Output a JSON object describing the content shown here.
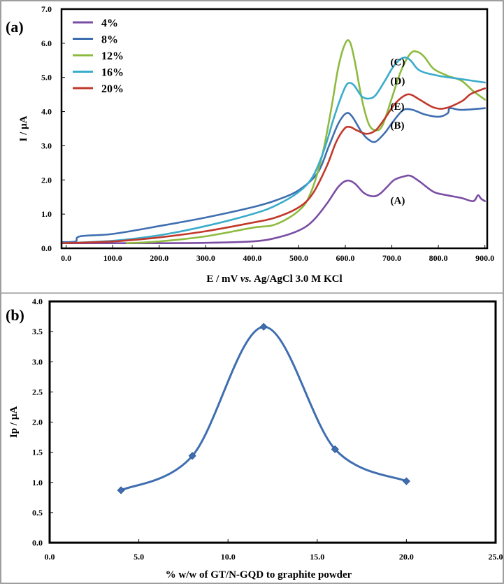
{
  "chart_data": [
    {
      "panel": "(a)",
      "type": "line",
      "xlabel_prefix": "E / mV ",
      "xlabel_italic": "vs.",
      "xlabel_suffix": " Ag/AgCl 3.0 M KCl",
      "ylabel": "I / µA",
      "xlim": [
        0,
        900
      ],
      "ylim": [
        0,
        7
      ],
      "xticks": [
        0,
        100,
        200,
        300,
        400,
        500,
        600,
        700,
        800,
        900
      ],
      "xtick_labels": [
        "0.0",
        "100.0",
        "200.0",
        "300.0",
        "400.0",
        "500.0",
        "600.0",
        "700.0",
        "800.0",
        "900.0"
      ],
      "yticks": [
        0,
        1,
        2,
        3,
        4,
        5,
        6,
        7
      ],
      "ytick_labels": [
        "0.0",
        "1.0",
        "2.0",
        "3.0",
        "4.0",
        "5.0",
        "6.0",
        "7.0"
      ],
      "legend_position": "top-left",
      "series": [
        {
          "name": "4%",
          "color": "#7a4ea3",
          "label": "(A)",
          "label_at": [
            715,
            1.4
          ],
          "points": [
            [
              0,
              0.15
            ],
            [
              100,
              0.15
            ],
            [
              200,
              0.15
            ],
            [
              300,
              0.16
            ],
            [
              400,
              0.2
            ],
            [
              450,
              0.3
            ],
            [
              500,
              0.52
            ],
            [
              530,
              0.8
            ],
            [
              560,
              1.3
            ],
            [
              585,
              1.8
            ],
            [
              603,
              1.98
            ],
            [
              620,
              1.9
            ],
            [
              640,
              1.62
            ],
            [
              660,
              1.52
            ],
            [
              675,
              1.6
            ],
            [
              690,
              1.8
            ],
            [
              705,
              2.0
            ],
            [
              725,
              2.1
            ],
            [
              740,
              2.12
            ],
            [
              760,
              1.95
            ],
            [
              790,
              1.65
            ],
            [
              820,
              1.55
            ],
            [
              850,
              1.47
            ],
            [
              875,
              1.38
            ],
            [
              885,
              1.55
            ],
            [
              892,
              1.45
            ],
            [
              900,
              1.38
            ]
          ]
        },
        {
          "name": "8%",
          "color": "#3f6eb0",
          "label": "(B)",
          "label_at": [
            715,
            3.6
          ],
          "points": [
            [
              -10,
              0.18
            ],
            [
              20,
              0.2
            ],
            [
              30,
              0.35
            ],
            [
              100,
              0.42
            ],
            [
              200,
              0.65
            ],
            [
              300,
              0.9
            ],
            [
              400,
              1.2
            ],
            [
              450,
              1.4
            ],
            [
              500,
              1.7
            ],
            [
              540,
              2.2
            ],
            [
              565,
              3.0
            ],
            [
              585,
              3.65
            ],
            [
              602,
              3.95
            ],
            [
              615,
              3.85
            ],
            [
              635,
              3.4
            ],
            [
              650,
              3.18
            ],
            [
              665,
              3.12
            ],
            [
              685,
              3.38
            ],
            [
              705,
              3.75
            ],
            [
              725,
              4.05
            ],
            [
              745,
              4.05
            ],
            [
              770,
              3.92
            ],
            [
              800,
              3.85
            ],
            [
              820,
              3.95
            ],
            [
              825,
              4.1
            ],
            [
              850,
              4.05
            ],
            [
              900,
              4.1
            ]
          ]
        },
        {
          "name": "12%",
          "color": "#8dbb3f",
          "label": "(C)",
          "label_at": [
            715,
            5.45
          ],
          "points": [
            [
              130,
              0.15
            ],
            [
              200,
              0.2
            ],
            [
              300,
              0.35
            ],
            [
              400,
              0.6
            ],
            [
              450,
              0.7
            ],
            [
              500,
              1.1
            ],
            [
              525,
              1.6
            ],
            [
              550,
              2.7
            ],
            [
              570,
              4.1
            ],
            [
              585,
              5.3
            ],
            [
              600,
              6.0
            ],
            [
              610,
              6.03
            ],
            [
              620,
              5.5
            ],
            [
              635,
              4.4
            ],
            [
              650,
              3.65
            ],
            [
              665,
              3.45
            ],
            [
              680,
              3.6
            ],
            [
              700,
              4.4
            ],
            [
              720,
              5.2
            ],
            [
              740,
              5.7
            ],
            [
              755,
              5.75
            ],
            [
              770,
              5.6
            ],
            [
              790,
              5.25
            ],
            [
              820,
              5.05
            ],
            [
              850,
              4.9
            ],
            [
              875,
              4.6
            ],
            [
              900,
              4.35
            ]
          ]
        },
        {
          "name": "16%",
          "color": "#3aaccb",
          "label": "(D)",
          "label_at": [
            715,
            4.9
          ],
          "points": [
            [
              -10,
              0.15
            ],
            [
              100,
              0.22
            ],
            [
              200,
              0.38
            ],
            [
              300,
              0.65
            ],
            [
              400,
              1.0
            ],
            [
              450,
              1.25
            ],
            [
              500,
              1.65
            ],
            [
              530,
              2.1
            ],
            [
              555,
              2.9
            ],
            [
              575,
              3.8
            ],
            [
              593,
              4.5
            ],
            [
              605,
              4.82
            ],
            [
              618,
              4.78
            ],
            [
              635,
              4.45
            ],
            [
              650,
              4.38
            ],
            [
              665,
              4.48
            ],
            [
              685,
              4.9
            ],
            [
              705,
              5.35
            ],
            [
              725,
              5.58
            ],
            [
              740,
              5.5
            ],
            [
              760,
              5.2
            ],
            [
              800,
              5.05
            ],
            [
              850,
              4.95
            ],
            [
              900,
              4.85
            ]
          ]
        },
        {
          "name": "20%",
          "color": "#c0392b",
          "label": "(E)",
          "label_at": [
            715,
            4.15
          ],
          "points": [
            [
              -10,
              0.15
            ],
            [
              100,
              0.2
            ],
            [
              200,
              0.32
            ],
            [
              300,
              0.5
            ],
            [
              400,
              0.75
            ],
            [
              450,
              0.9
            ],
            [
              500,
              1.2
            ],
            [
              530,
              1.6
            ],
            [
              560,
              2.4
            ],
            [
              580,
              3.1
            ],
            [
              598,
              3.5
            ],
            [
              610,
              3.55
            ],
            [
              625,
              3.45
            ],
            [
              645,
              3.35
            ],
            [
              665,
              3.45
            ],
            [
              685,
              3.8
            ],
            [
              705,
              4.2
            ],
            [
              725,
              4.45
            ],
            [
              740,
              4.5
            ],
            [
              760,
              4.35
            ],
            [
              790,
              4.12
            ],
            [
              815,
              4.1
            ],
            [
              850,
              4.3
            ],
            [
              870,
              4.52
            ],
            [
              900,
              4.68
            ]
          ]
        }
      ]
    },
    {
      "panel": "(b)",
      "type": "scatter",
      "xlabel": "% w/w of GT/N-GQD to graphite powder",
      "ylabel": "Ip / µA",
      "xlim": [
        0,
        25
      ],
      "ylim": [
        0,
        4
      ],
      "xticks": [
        0,
        5,
        10,
        15,
        20,
        25
      ],
      "xtick_labels": [
        "0.0",
        "5.0",
        "10.0",
        "15.0",
        "20.0",
        "25.0"
      ],
      "yticks": [
        0,
        0.5,
        1,
        1.5,
        2,
        2.5,
        3,
        3.5,
        4
      ],
      "ytick_labels": [
        "0.0",
        "0.5",
        "1.0",
        "1.5",
        "2.0",
        "2.5",
        "3.0",
        "3.5",
        "4.0"
      ],
      "x": [
        4,
        8,
        12,
        16,
        20
      ],
      "y": [
        0.87,
        1.44,
        3.58,
        1.55,
        1.02
      ],
      "color": "#3f6eb0"
    }
  ]
}
